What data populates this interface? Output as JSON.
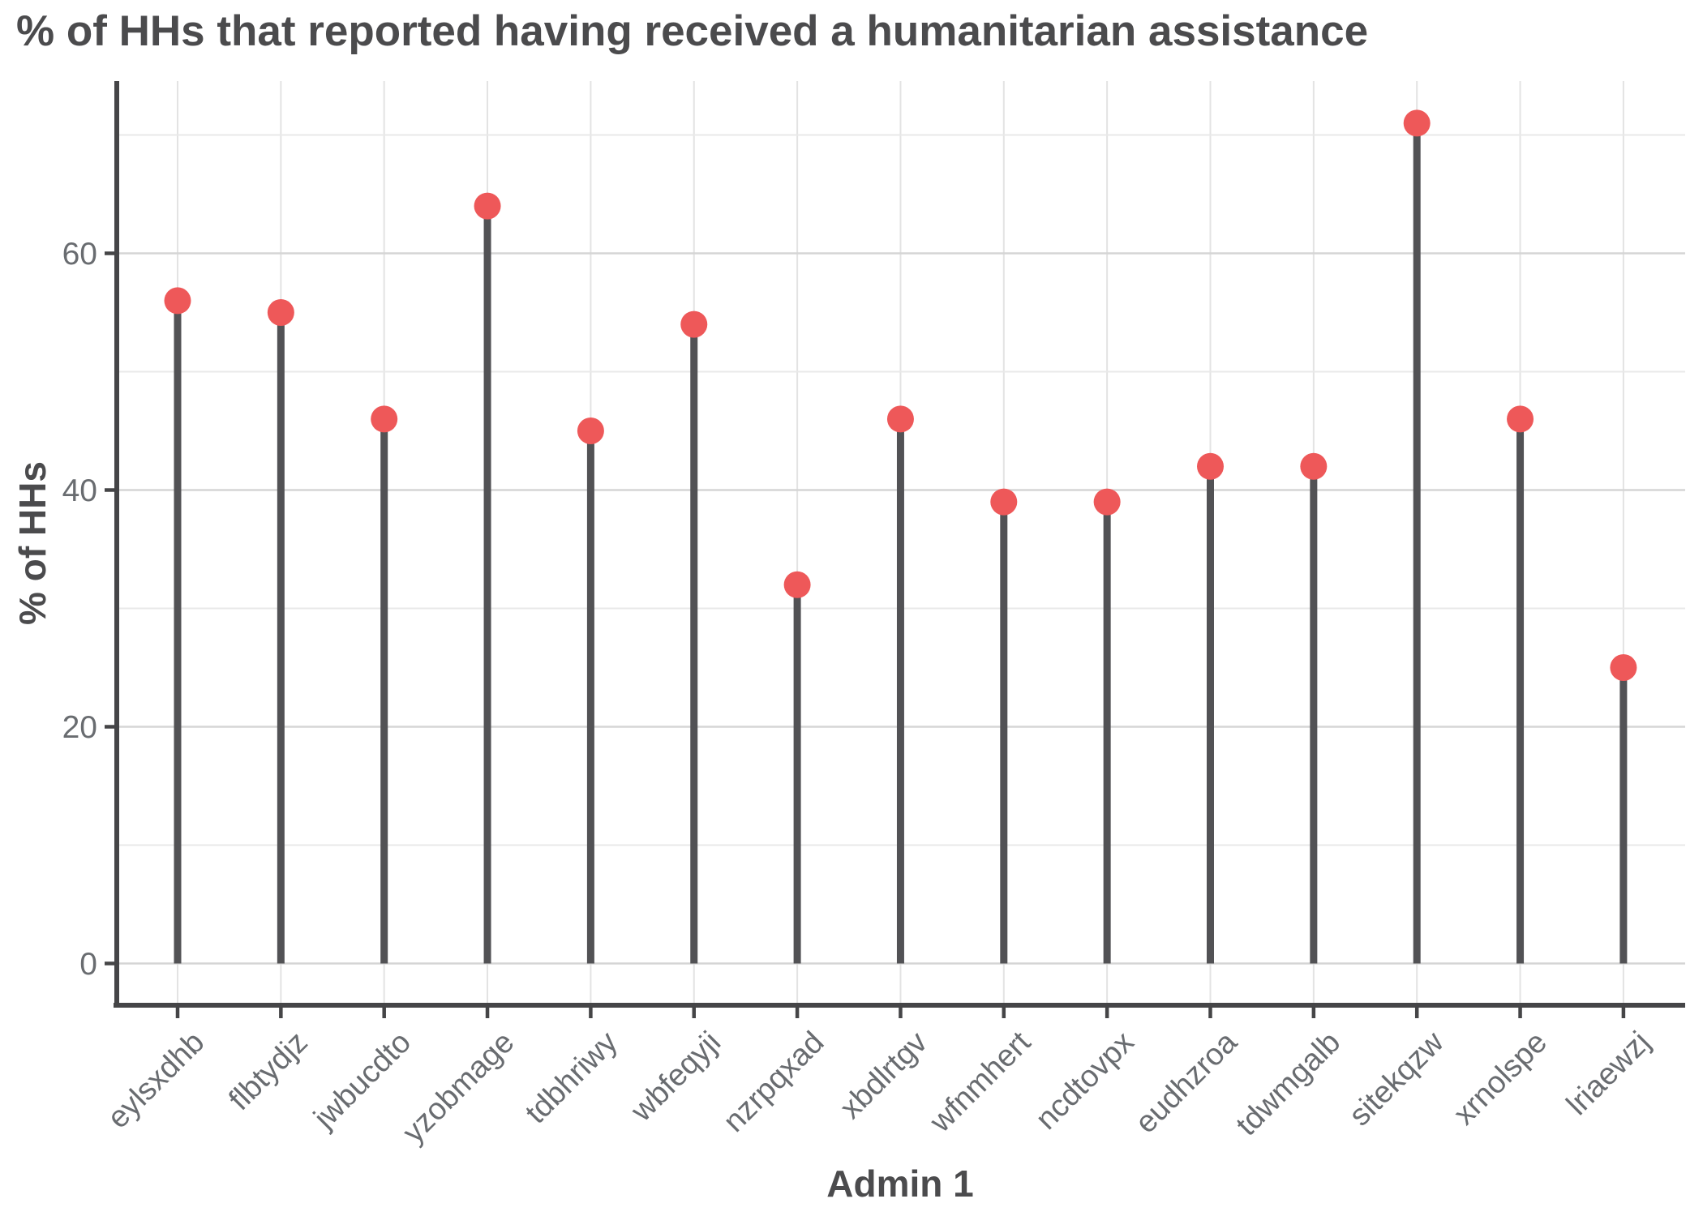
{
  "page": {
    "background": "#ffffff"
  },
  "chart_data": {
    "type": "bar",
    "variant": "lollipop",
    "title": "% of HHs that reported having received a humanitarian assistance",
    "xlabel": "Admin 1",
    "ylabel": "% of HHs",
    "categories": [
      "eylsxdhb",
      "flbtydjz",
      "jwbucdto",
      "yzobmage",
      "tdbhriwy",
      "wbfeqyji",
      "nzrpqxad",
      "xbdlrtgv",
      "wfnmhert",
      "ncdtovpx",
      "eudhzroa",
      "tdwmgalb",
      "sitekqzw",
      "xrnolspe",
      "lriaewzj"
    ],
    "values": [
      56,
      55,
      46,
      64,
      45,
      54,
      32,
      46,
      39,
      39,
      42,
      42,
      71,
      46,
      25
    ],
    "yticks": [
      0,
      20,
      40,
      60
    ],
    "yticks_minor": [
      10,
      30,
      50,
      70
    ],
    "ylim": [
      0,
      75
    ],
    "grid": "horizontal major and minor gridlines plus vertical category gridlines, light gray on white",
    "legend": "none",
    "colors": {
      "dot": "#ee5859",
      "stem": "#525255",
      "axis_line": "#454547",
      "title_text": "#4b4b4d",
      "axis_title_text": "#4b4b4d",
      "tick_text": "#696c70",
      "grid_major": "#d5d5d5",
      "grid_minor": "#e9e9e9",
      "grid_vertical": "#e3e3e3"
    }
  }
}
